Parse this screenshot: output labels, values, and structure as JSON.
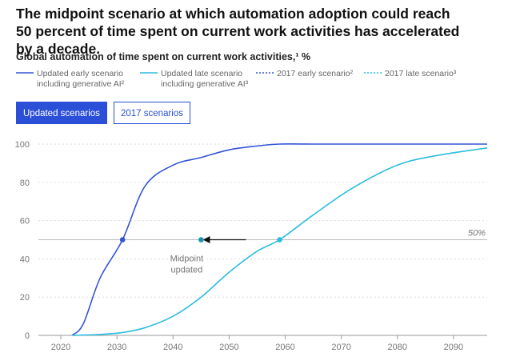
{
  "chart_data": {
    "type": "line",
    "title": "The midpoint scenario at which automation adoption could reach 50 percent of time spent on current work activities has accelerated by a decade.",
    "subtitle": "Global automation of time spent on current work activities,¹ %",
    "buttons": [
      "Updated scenarios",
      "2017 scenarios"
    ],
    "active_button": 0,
    "x": [
      2022,
      2024,
      2027,
      2031,
      2035,
      2040,
      2045,
      2050,
      2055,
      2059,
      2065,
      2072,
      2080,
      2087,
      2096
    ],
    "series": [
      {
        "name": "Updated early scenario including generative AI²",
        "color": "#3355d6",
        "dashed": false,
        "values": [
          0,
          6,
          30,
          50,
          78,
          89,
          93,
          97,
          99,
          100,
          100,
          100,
          100,
          100,
          100
        ]
      },
      {
        "name": "Updated late scenario including generative AI³",
        "color": "#2bbde0",
        "dashed": false,
        "values": [
          0,
          0.2,
          0.5,
          1.5,
          4,
          10,
          20,
          33,
          44,
          50,
          63,
          77,
          89,
          94,
          98
        ]
      },
      {
        "name": "2017 early scenario²",
        "color": "#3355d6",
        "dashed": true,
        "values": [
          null,
          null,
          null,
          null,
          null,
          null,
          null,
          null,
          null,
          null,
          null,
          null,
          null,
          null,
          null
        ]
      },
      {
        "name": "2017 late scenario³",
        "color": "#2bbde0",
        "dashed": true,
        "values": [
          null,
          null,
          null,
          null,
          null,
          null,
          null,
          null,
          null,
          null,
          null,
          null,
          null,
          null,
          null
        ]
      }
    ],
    "reference_line": {
      "value": 50,
      "label": "50%"
    },
    "markers": [
      {
        "x": 2031,
        "y": 50,
        "color": "#3355d6"
      },
      {
        "x": 2045,
        "y": 50,
        "color": "#1a95ad"
      },
      {
        "x": 2059,
        "y": 50,
        "color": "#2bbde0"
      }
    ],
    "arrow": {
      "from": 2053,
      "to": 2045,
      "y": 50
    },
    "annotation": {
      "x": 2045,
      "y": 50,
      "text": "Midpoint updated"
    },
    "xlim": [
      2016,
      2096
    ],
    "ylim": [
      0,
      100
    ],
    "xticks": [
      2020,
      2030,
      2040,
      2050,
      2060,
      2070,
      2080,
      2090
    ],
    "yticks": [
      0,
      20,
      40,
      60,
      80,
      100
    ],
    "grid": true
  }
}
